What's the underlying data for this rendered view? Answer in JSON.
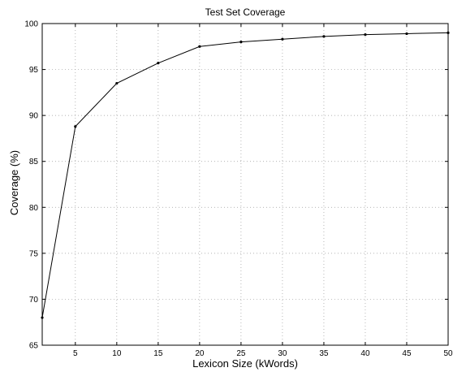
{
  "chart_data": {
    "type": "line",
    "title": "Test Set Coverage",
    "xlabel": "Lexicon Size (kWords)",
    "ylabel": "Coverage (%)",
    "xlim": [
      1,
      50
    ],
    "ylim": [
      65,
      100
    ],
    "xticks": [
      5,
      10,
      15,
      20,
      25,
      30,
      35,
      40,
      45,
      50
    ],
    "yticks": [
      65,
      70,
      75,
      80,
      85,
      90,
      95,
      100
    ],
    "grid": true,
    "series": [
      {
        "x": [
          1,
          5,
          10,
          15,
          20,
          25,
          30,
          35,
          40,
          45,
          50
        ],
        "y": [
          68.0,
          88.8,
          93.5,
          95.7,
          97.5,
          98.0,
          98.3,
          98.6,
          98.8,
          98.9,
          99.0
        ]
      }
    ]
  }
}
